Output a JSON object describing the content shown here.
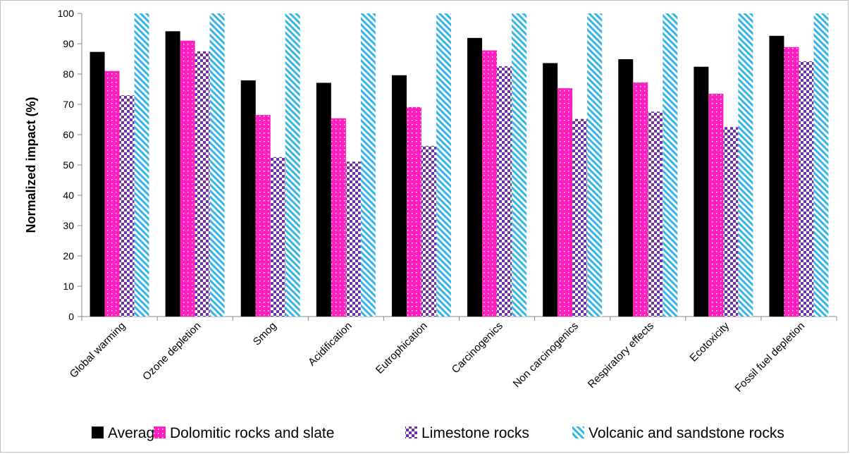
{
  "chart_data": {
    "type": "bar",
    "ylabel": "Normalized impact (%)",
    "xlabel": "",
    "ylim": [
      0,
      100
    ],
    "yticks": [
      0,
      10,
      20,
      30,
      40,
      50,
      60,
      70,
      80,
      90,
      100
    ],
    "grid": false,
    "legend_position": "bottom",
    "categories": [
      "Global warming",
      "Ozone depletion",
      "Smog",
      "Acidification",
      "Eutrophication",
      "Carcinogenics",
      "Non carcinogenics",
      "Respiratory effects",
      "Ecotoxicity",
      "Fossil fuel depletion"
    ],
    "series": [
      {
        "name": "Average",
        "color": "#000000",
        "pattern": "solid",
        "values": [
          87.3,
          94.1,
          77.9,
          77.1,
          79.6,
          91.9,
          83.6,
          84.9,
          82.4,
          92.6
        ]
      },
      {
        "name": "Dolomitic rocks and slate",
        "color": "#ff1fbf",
        "pattern": "dotted",
        "values": [
          81.0,
          91.0,
          66.5,
          65.4,
          69.1,
          87.8,
          75.3,
          77.2,
          73.5,
          88.9
        ]
      },
      {
        "name": "Limestone rocks",
        "color": "#7030a0",
        "pattern": "checker",
        "values": [
          73.0,
          87.5,
          52.6,
          51.1,
          56.3,
          82.6,
          65.2,
          67.6,
          62.5,
          84.2
        ]
      },
      {
        "name": "Volcanic and sandstone rocks",
        "color": "#33b5e5",
        "pattern": "diagonal",
        "values": [
          100,
          100,
          100,
          100,
          100,
          100,
          100,
          100,
          100,
          100
        ]
      }
    ]
  }
}
